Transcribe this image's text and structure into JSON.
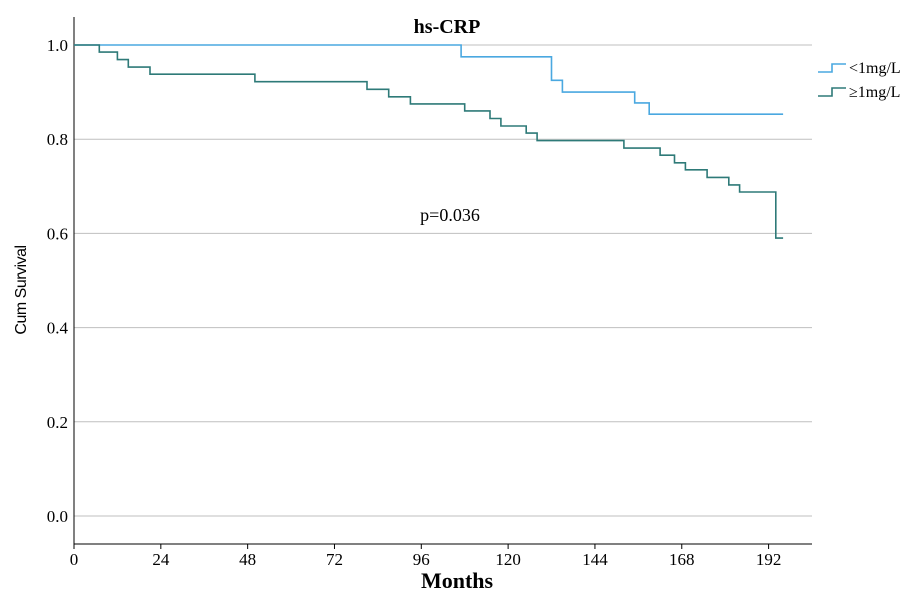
{
  "chart_data": {
    "type": "line",
    "title": "hs-CRP",
    "xlabel": "Months",
    "ylabel": "Cum Survival",
    "xlim": [
      0,
      204
    ],
    "ylim": [
      0.0,
      1.0
    ],
    "xticks": [
      0,
      24,
      48,
      72,
      96,
      120,
      144,
      168,
      192
    ],
    "yticks": [
      0.0,
      0.2,
      0.4,
      0.6,
      0.8,
      1.0
    ],
    "grid": true,
    "legend_position": "right",
    "annotation": "p=0.036",
    "series": [
      {
        "name": "<1mg/L",
        "color": "#4aa8e0",
        "step": true,
        "points": [
          [
            0,
            1.0
          ],
          [
            107,
            1.0
          ],
          [
            107,
            0.975
          ],
          [
            132,
            0.975
          ],
          [
            132,
            0.925
          ],
          [
            135,
            0.925
          ],
          [
            135,
            0.9
          ],
          [
            155,
            0.9
          ],
          [
            155,
            0.877
          ],
          [
            159,
            0.877
          ],
          [
            159,
            0.853
          ],
          [
            196,
            0.853
          ]
        ]
      },
      {
        "name": "≥1mg/L",
        "color": "#2e7a78",
        "step": true,
        "points": [
          [
            0,
            1.0
          ],
          [
            7,
            1.0
          ],
          [
            7,
            0.985
          ],
          [
            12,
            0.985
          ],
          [
            12,
            0.969
          ],
          [
            15,
            0.969
          ],
          [
            15,
            0.953
          ],
          [
            21,
            0.953
          ],
          [
            21,
            0.938
          ],
          [
            50,
            0.938
          ],
          [
            50,
            0.922
          ],
          [
            81,
            0.922
          ],
          [
            81,
            0.906
          ],
          [
            87,
            0.906
          ],
          [
            87,
            0.89
          ],
          [
            93,
            0.89
          ],
          [
            93,
            0.875
          ],
          [
            108,
            0.875
          ],
          [
            108,
            0.86
          ],
          [
            115,
            0.86
          ],
          [
            115,
            0.844
          ],
          [
            118,
            0.844
          ],
          [
            118,
            0.828
          ],
          [
            125,
            0.828
          ],
          [
            125,
            0.813
          ],
          [
            128,
            0.813
          ],
          [
            128,
            0.797
          ],
          [
            152,
            0.797
          ],
          [
            152,
            0.781
          ],
          [
            162,
            0.781
          ],
          [
            162,
            0.766
          ],
          [
            166,
            0.766
          ],
          [
            166,
            0.75
          ],
          [
            169,
            0.75
          ],
          [
            169,
            0.735
          ],
          [
            175,
            0.735
          ],
          [
            175,
            0.719
          ],
          [
            181,
            0.719
          ],
          [
            181,
            0.703
          ],
          [
            184,
            0.703
          ],
          [
            184,
            0.688
          ],
          [
            194,
            0.688
          ],
          [
            194,
            0.59
          ],
          [
            196,
            0.59
          ]
        ]
      }
    ]
  }
}
